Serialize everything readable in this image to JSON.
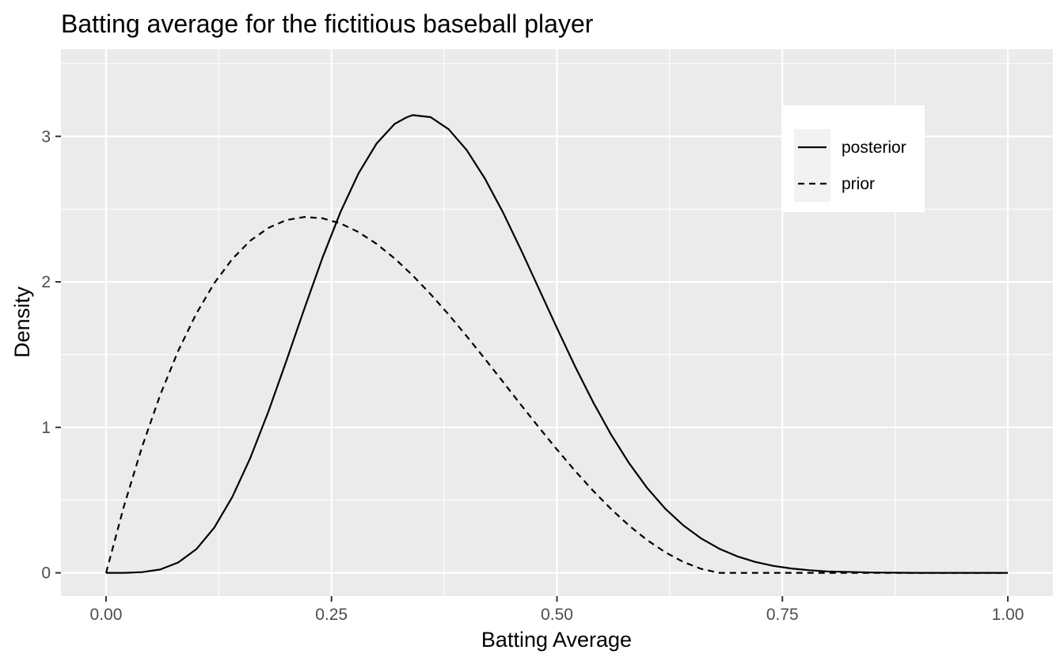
{
  "chart_data": {
    "type": "line",
    "title": "Batting average for the fictitious baseball player",
    "xlabel": "Batting Average",
    "ylabel": "Density",
    "xlim": [
      -0.05,
      1.05
    ],
    "ylim": [
      -0.16,
      3.6
    ],
    "x_ticks": [
      0,
      0.25,
      0.5,
      0.75,
      1
    ],
    "x_tick_labels": [
      "0.00",
      "0.25",
      "0.50",
      "0.75",
      "1.00"
    ],
    "x_minor_ticks": [
      0.125,
      0.375,
      0.625,
      0.875
    ],
    "y_ticks": [
      0,
      1,
      2,
      3
    ],
    "y_tick_labels": [
      "0",
      "1",
      "2",
      "3"
    ],
    "y_minor_ticks": [
      0.5,
      1.5,
      2.5,
      3.5
    ],
    "grid": true,
    "legend_position": "top-right",
    "background_color": "#ebebeb",
    "grid_color": "#ffffff",
    "line_color": "#000000",
    "series": [
      {
        "name": "posterior",
        "line_style": "solid",
        "x": [
          0,
          0.02,
          0.04,
          0.06,
          0.08,
          0.1,
          0.12,
          0.14,
          0.16,
          0.18,
          0.2,
          0.22,
          0.24,
          0.26,
          0.28,
          0.3,
          0.32,
          0.333,
          0.34,
          0.36,
          0.38,
          0.4,
          0.42,
          0.44,
          0.46,
          0.48,
          0.5,
          0.52,
          0.54,
          0.56,
          0.58,
          0.6,
          0.62,
          0.64,
          0.66,
          0.68,
          0.7,
          0.72,
          0.74,
          0.76,
          0.78,
          0.8,
          0.85,
          0.9,
          0.95,
          1
        ],
        "y": [
          0,
          0,
          0.005,
          0.023,
          0.071,
          0.162,
          0.31,
          0.521,
          0.79,
          1.108,
          1.458,
          1.818,
          2.165,
          2.48,
          2.746,
          2.951,
          3.086,
          3.13,
          3.146,
          3.132,
          3.049,
          2.905,
          2.711,
          2.479,
          2.222,
          1.953,
          1.683,
          1.42,
          1.174,
          0.951,
          0.754,
          0.584,
          0.442,
          0.327,
          0.236,
          0.166,
          0.113,
          0.075,
          0.048,
          0.03,
          0.018,
          0.01,
          0.002,
          0,
          0,
          0
        ]
      },
      {
        "name": "prior",
        "line_style": "dashed",
        "x": [
          0,
          0.02,
          0.04,
          0.06,
          0.08,
          0.1,
          0.12,
          0.14,
          0.16,
          0.18,
          0.2,
          0.22,
          0.24,
          0.26,
          0.28,
          0.3,
          0.32,
          0.34,
          0.36,
          0.38,
          0.4,
          0.42,
          0.44,
          0.46,
          0.48,
          0.5,
          0.52,
          0.54,
          0.56,
          0.58,
          0.6,
          0.62,
          0.64,
          0.66,
          0.68,
          0.7,
          0.72,
          0.74,
          0.76,
          0.78,
          0.8,
          0.85,
          0.9,
          0.95,
          1
        ],
        "y": [
          0,
          0.461,
          0.867,
          1.222,
          1.526,
          1.781,
          1.991,
          2.157,
          2.283,
          2.371,
          2.425,
          2.446,
          2.437,
          2.402,
          2.342,
          2.261,
          2.161,
          2.045,
          1.915,
          1.775,
          1.626,
          1.472,
          1.314,
          1.156,
          1.0,
          0.848,
          0.702,
          0.565,
          0.439,
          0.325,
          0.226,
          0.142,
          0.075,
          0.027,
          0.0,
          -0.0,
          0,
          0,
          0,
          0,
          0,
          0,
          0,
          0,
          0
        ]
      }
    ]
  }
}
